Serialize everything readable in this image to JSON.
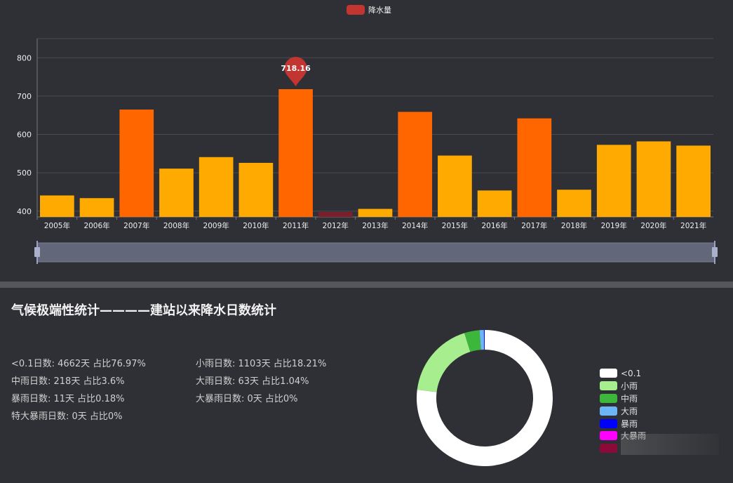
{
  "chart_data": [
    {
      "type": "bar",
      "legend": "降水量",
      "categories": [
        "2005年",
        "2006年",
        "2007年",
        "2008年",
        "2009年",
        "2010年",
        "2011年",
        "2012年",
        "2013年",
        "2014年",
        "2015年",
        "2016年",
        "2017年",
        "2018年",
        "2019年",
        "2020年",
        "2021年"
      ],
      "values": [
        441,
        434,
        665,
        511,
        541,
        526,
        718.16,
        398,
        406,
        659,
        545,
        454,
        642,
        456,
        573,
        582,
        571
      ],
      "ylim": [
        385,
        850
      ],
      "yticks": [
        "400",
        "500",
        "600",
        "700",
        "800"
      ],
      "ytick_values": [
        400,
        500,
        600,
        700,
        800
      ],
      "grid": true,
      "markpoint": {
        "category": "2011年",
        "label": "718.16"
      },
      "colors": {
        "high": "#ff6600",
        "normal": "#ffaa00",
        "low": "#7a1f2b",
        "marker": "#c23531"
      },
      "datazoom": {
        "start": 0,
        "end": 100
      }
    },
    {
      "type": "pie",
      "donut": true,
      "labels": [
        "<0.1",
        "小雨",
        "中雨",
        "大雨",
        "暴雨",
        "大暴雨",
        "特大暴雨"
      ],
      "values": [
        4662,
        1103,
        218,
        63,
        11,
        0,
        0
      ],
      "colors": [
        "#ffffff",
        "#a6ee8e",
        "#3cb73c",
        "#6cb6f5",
        "#0000ff",
        "#ff00ff",
        "#8b0a3a"
      ]
    }
  ],
  "section_title": "气候极端性统计————建站以来降水日数统计",
  "stats": [
    "<0.1日数: 4662天 占比76.97%",
    "小雨日数: 1103天 占比18.21%",
    "中雨日数: 218天 占比3.6%",
    "大雨日数: 63天 占比1.04%",
    "暴雨日数: 11天 占比0.18%",
    "大暴雨日数: 0天 占比0%",
    "特大暴雨日数: 0天 占比0%"
  ],
  "pie_legend_visible": [
    "<0.1",
    "小雨",
    "中雨",
    "大雨",
    "暴雨",
    "大暴雨"
  ]
}
